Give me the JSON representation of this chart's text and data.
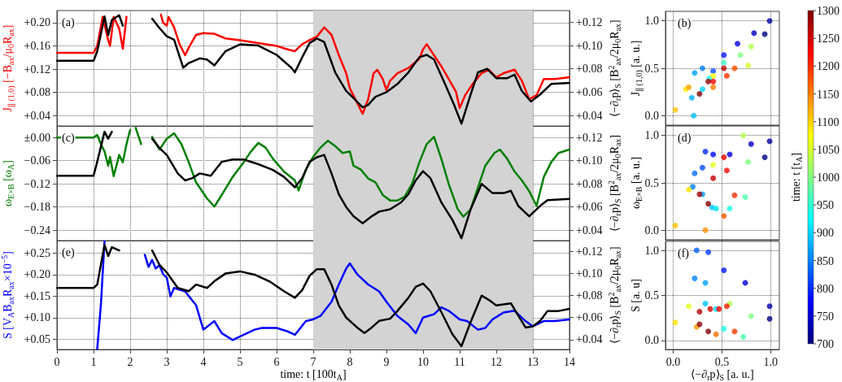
{
  "chart_data": [
    {
      "type": "line",
      "ylabel": "J$_{∥ (1,0)}$ [−B$_{ax}$/μ$_{0}$R$_{ax}$]",
      "y2label": "⟨−∂$_{r}$p⟩$_{S}$ [B$^{2}$$_{ax}$/2μ$_{0}$R$_{ax}$]",
      "annotations": [
        "(a)"
      ],
      "xlim": [
        0,
        14
      ],
      "xticks": [
        0,
        1,
        2,
        3,
        4,
        5,
        6,
        7,
        8,
        9,
        10,
        11,
        12,
        13,
        14
      ],
      "ylim": [
        0.022,
        0.221
      ],
      "yticks": [
        {
          "value": 0.04,
          "label": "+0.04"
        },
        {
          "value": 0.08,
          "label": "+0.08"
        },
        {
          "value": 0.12,
          "label": "+0.12"
        },
        {
          "value": 0.16,
          "label": "+0.16"
        },
        {
          "value": 0.2,
          "label": "+0.20"
        }
      ],
      "y2lim": [
        0.031,
        0.13
      ],
      "y2ticks": [
        {
          "value": 0.04,
          "label": "+0.04"
        },
        {
          "value": 0.06,
          "label": "+0.06"
        },
        {
          "value": 0.08,
          "label": "+0.08"
        },
        {
          "value": 0.1,
          "label": "+0.10"
        },
        {
          "value": 0.12,
          "label": "+0.12"
        }
      ],
      "tick_labels": "y",
      "grid": true,
      "line_style": "solid",
      "bands": [
        {
          "axis": "x",
          "from": 7,
          "to": 13,
          "color": "#d3d3d3"
        }
      ],
      "series": [
        {
          "color": "#ff0000",
          "x": [
            0,
            1.0,
            1.1,
            1.25,
            1.4,
            1.45,
            1.55,
            1.7,
            1.8,
            1.9,
            2.0,
            2.84,
            2.9,
            3.0,
            3.05,
            3.2,
            3.35,
            3.5,
            3.6,
            3.8,
            4.0,
            4.3,
            4.6,
            5.0,
            5.5,
            6.0,
            6.3,
            6.5,
            6.7,
            6.9,
            7.1,
            7.3,
            7.5,
            7.7,
            7.9,
            8.0,
            8.15,
            8.35,
            8.5,
            8.65,
            8.75,
            8.9,
            9.0,
            9.1,
            9.3,
            9.6,
            9.9,
            10.0,
            10.1,
            10.3,
            10.5,
            10.7,
            10.9,
            11.0,
            11.15,
            11.35,
            11.6,
            11.8,
            12.0,
            12.2,
            12.5,
            12.7,
            12.9,
            13.1,
            13.3,
            13.6,
            14.0
          ],
          "values": [
            0.148,
            0.148,
            0.16,
            0.21,
            0.17,
            0.16,
            0.21,
            0.19,
            0.155,
            0.21,
            null,
            0.214,
            0.2,
            0.195,
            0.21,
            0.192,
            0.163,
            0.144,
            0.157,
            0.179,
            0.182,
            0.181,
            0.173,
            0.17,
            0.165,
            0.16,
            0.154,
            0.151,
            0.163,
            0.17,
            0.176,
            0.192,
            0.179,
            0.144,
            0.113,
            0.087,
            0.068,
            0.043,
            0.068,
            0.113,
            0.119,
            0.103,
            0.084,
            0.1,
            0.113,
            0.122,
            0.138,
            0.154,
            0.163,
            0.144,
            0.125,
            0.103,
            0.081,
            0.053,
            0.075,
            0.094,
            0.113,
            0.119,
            0.106,
            0.113,
            0.119,
            0.1,
            0.068,
            0.075,
            0.103,
            0.103,
            0.106
          ]
        },
        {
          "color": "#000000",
          "axis": "y2",
          "x": [
            0,
            1.0,
            1.1,
            1.3,
            1.4,
            1.5,
            1.7,
            1.8,
            1.9,
            2.6,
            2.8,
            3.0,
            3.2,
            3.45,
            3.6,
            3.9,
            4.1,
            4.3,
            4.6,
            5.0,
            5.5,
            6.0,
            6.4,
            6.5,
            6.7,
            6.9,
            7.1,
            7.3,
            7.6,
            7.9,
            8.1,
            8.35,
            8.5,
            8.7,
            9.0,
            9.3,
            9.6,
            9.9,
            10.1,
            10.3,
            10.6,
            10.85,
            11.05,
            11.3,
            11.5,
            11.75,
            12.0,
            12.3,
            12.5,
            12.7,
            12.95,
            13.2,
            13.5,
            14.0
          ],
          "values": [
            0.087,
            0.087,
            0.095,
            0.125,
            0.109,
            0.122,
            0.126,
            0.117,
            null,
            0.123,
            0.115,
            0.108,
            0.105,
            0.081,
            0.085,
            0.089,
            0.088,
            0.083,
            0.095,
            0.101,
            0.1,
            0.092,
            0.081,
            0.077,
            0.09,
            0.102,
            0.106,
            0.103,
            0.077,
            0.061,
            0.055,
            0.047,
            0.049,
            0.056,
            0.06,
            0.067,
            0.077,
            0.09,
            0.092,
            0.088,
            0.067,
            0.049,
            0.033,
            0.058,
            0.077,
            0.08,
            0.072,
            0.072,
            0.075,
            0.061,
            0.052,
            0.058,
            0.067,
            0.068
          ]
        }
      ]
    },
    {
      "type": "scatter",
      "ylabel": "J$_{∥ (1,0)}$ [a. u.]",
      "annotations": [
        "(b)"
      ],
      "xlim": [
        -0.08,
        1.09
      ],
      "xticks": [
        0,
        0.5,
        1
      ],
      "ylim": [
        -0.1,
        1.1
      ],
      "yticks": [
        {
          "value": 0,
          "label": "0.0"
        },
        {
          "value": 0.5,
          "label": "0.5"
        },
        {
          "value": 1,
          "label": "1.0"
        }
      ],
      "tick_labels": "y",
      "grid": true,
      "marker": "circle",
      "clabel": "time: t [t$_{A}$]",
      "clim": [
        700,
        1300
      ],
      "cticks": [
        700,
        750,
        800,
        850,
        900,
        950,
        1000,
        1050,
        1100,
        1150,
        1200,
        1250,
        1300
      ],
      "x": [
        0.94,
        0.99,
        0.83,
        0.66,
        0.52,
        0.41,
        0.3,
        0.22,
        0.19,
        0.21,
        0.3,
        0.37,
        0.52,
        0.69,
        0.8,
        0.77,
        0.41,
        0.13,
        0.02,
        0.16,
        0.41,
        0.63,
        0.55,
        0.41,
        0.52,
        0.36,
        0.27
      ],
      "values": [
        0.86,
        1.0,
        0.87,
        0.76,
        0.64,
        0.47,
        0.5,
        0.45,
        0.19,
        0.0,
        0.28,
        0.39,
        0.56,
        0.64,
        0.73,
        0.53,
        0.42,
        0.28,
        0.06,
        0.3,
        0.3,
        0.5,
        0.42,
        0.36,
        0.5,
        0.36,
        0.23
      ],
      "cvalues": [
        700,
        720,
        740,
        760,
        790,
        820,
        850,
        870,
        880,
        890,
        900,
        930,
        960,
        1000,
        1030,
        1050,
        1070,
        1090,
        1110,
        1130,
        1150,
        1180,
        1200,
        1230,
        1260,
        1280,
        1300
      ]
    },
    {
      "type": "line",
      "ylabel": "ω$_{E×B}$ [ω$_{A}$]",
      "y2label": "⟨−∂$_{r}$p⟩$_{S}$ [B$^{2}$$_{ax}$/2μ$_{0}$R$_{ax}$]",
      "annotations": [
        "(c)"
      ],
      "xlim": [
        0,
        14
      ],
      "xticks": [
        0,
        1,
        2,
        3,
        4,
        5,
        6,
        7,
        8,
        9,
        10,
        11,
        12,
        13,
        14
      ],
      "ylim": [
        -0.267,
        0.03
      ],
      "yticks": [
        {
          "value": -0.24,
          "label": "−0.24"
        },
        {
          "value": -0.18,
          "label": "−0.18"
        },
        {
          "value": -0.12,
          "label": "−0.12"
        },
        {
          "value": -0.06,
          "label": "−0.06"
        },
        {
          "value": 0,
          "label": "±0.00"
        }
      ],
      "y2lim": [
        0.031,
        0.13
      ],
      "y2ticks": [
        {
          "value": 0.04,
          "label": "+0.04"
        },
        {
          "value": 0.06,
          "label": "+0.06"
        },
        {
          "value": 0.08,
          "label": "+0.08"
        },
        {
          "value": 0.1,
          "label": "+0.10"
        },
        {
          "value": 0.12,
          "label": "+0.12"
        }
      ],
      "tick_labels": "y",
      "grid": true,
      "line_style": "solid",
      "bands": [
        {
          "axis": "x",
          "from": 7,
          "to": 13,
          "color": "#d3d3d3"
        }
      ],
      "series": [
        {
          "color": "#008000",
          "x": [
            0,
            1.0,
            1.1,
            1.2,
            1.3,
            1.4,
            1.45,
            1.55,
            1.7,
            1.8,
            1.9,
            2.0,
            2.08,
            2.15,
            2.3,
            2.4,
            2.6,
            2.8,
            3.0,
            3.2,
            3.4,
            3.6,
            3.8,
            4.1,
            4.3,
            4.5,
            4.8,
            5.1,
            5.3,
            5.5,
            5.7,
            5.9,
            6.2,
            6.5,
            6.6,
            6.8,
            7.0,
            7.2,
            7.4,
            7.6,
            7.8,
            8.0,
            8.1,
            8.3,
            8.5,
            8.7,
            8.9,
            9.1,
            9.3,
            9.5,
            9.7,
            9.9,
            10.1,
            10.3,
            10.5,
            10.7,
            10.95,
            11.1,
            11.3,
            11.5,
            11.7,
            11.95,
            12.1,
            12.3,
            12.5,
            12.7,
            12.9,
            13.1,
            13.3,
            13.5,
            13.7,
            14.0
          ],
          "values": [
            0,
            0,
            0.007,
            -0.017,
            -0.036,
            -0.073,
            -0.05,
            -0.1,
            -0.045,
            -0.064,
            -0.017,
            0.02,
            null,
            0.025,
            -0.017,
            null,
            0.002,
            -0.031,
            -0.003,
            0.011,
            -0.017,
            -0.064,
            -0.116,
            -0.158,
            -0.179,
            -0.149,
            -0.102,
            -0.064,
            -0.036,
            -0.014,
            -0.026,
            -0.055,
            -0.088,
            -0.111,
            -0.137,
            -0.083,
            -0.05,
            -0.026,
            -0.008,
            -0.022,
            -0.04,
            -0.036,
            -0.073,
            -0.083,
            -0.106,
            -0.116,
            -0.149,
            -0.163,
            -0.163,
            -0.153,
            -0.12,
            -0.064,
            -0.017,
            0.002,
            -0.055,
            -0.12,
            -0.186,
            -0.205,
            -0.186,
            -0.13,
            -0.073,
            -0.04,
            -0.031,
            -0.055,
            -0.088,
            -0.111,
            -0.139,
            -0.177,
            -0.102,
            -0.064,
            -0.04,
            -0.031
          ]
        },
        {
          "color": "#000000",
          "axis": "y2",
          "x": [
            0,
            1.0,
            1.1,
            1.3,
            1.4,
            1.5,
            1.7,
            2.6,
            2.8,
            3.0,
            3.3,
            3.5,
            3.7,
            3.9,
            4.2,
            4.5,
            4.8,
            5.1,
            5.5,
            5.9,
            6.2,
            6.5,
            6.7,
            6.9,
            7.1,
            7.3,
            7.5,
            7.7,
            7.9,
            8.1,
            8.35,
            8.6,
            8.8,
            9.1,
            9.4,
            9.6,
            9.8,
            10.0,
            10.2,
            10.5,
            10.8,
            11.05,
            11.3,
            11.6,
            11.9,
            12.2,
            12.4,
            12.6,
            12.9,
            13.2,
            13.4,
            14.0
          ],
          "values": [
            0.087,
            0.087,
            0.099,
            0.125,
            0.119,
            0.125,
            null,
            0.119,
            0.111,
            0.105,
            0.089,
            0.083,
            0.085,
            0.089,
            0.087,
            0.099,
            0.101,
            0.101,
            0.097,
            0.092,
            0.086,
            0.077,
            0.085,
            0.099,
            0.103,
            0.105,
            0.089,
            0.071,
            0.06,
            0.052,
            0.046,
            0.052,
            0.056,
            0.058,
            0.064,
            0.071,
            0.083,
            0.091,
            0.085,
            0.064,
            0.049,
            0.033,
            0.058,
            0.08,
            0.072,
            0.072,
            0.074,
            0.061,
            0.052,
            0.061,
            0.066,
            0.067
          ]
        }
      ]
    },
    {
      "type": "scatter",
      "ylabel": "ω$_{E×B}$ [a. u.]",
      "annotations": [
        "(d)"
      ],
      "xlim": [
        -0.08,
        1.09
      ],
      "xticks": [
        0,
        0.5,
        1
      ],
      "ylim": [
        -0.1,
        1.1
      ],
      "yticks": [
        {
          "value": 0,
          "label": "0.0"
        },
        {
          "value": 0.5,
          "label": "0.5"
        },
        {
          "value": 1,
          "label": "1.0"
        }
      ],
      "tick_labels": "y",
      "grid": true,
      "marker": "circle",
      "x": [
        0.94,
        0.99,
        0.8,
        0.58,
        0.41,
        0.33,
        0.3,
        0.22,
        0.2,
        0.3,
        0.4,
        0.44,
        0.58,
        0.74,
        0.77,
        0.72,
        0.41,
        0.16,
        0.02,
        0.33,
        0.52,
        0.63,
        0.55,
        0.52,
        0.41,
        0.27,
        0.36
      ],
      "values": [
        0.77,
        0.94,
        0.91,
        0.8,
        0.8,
        0.83,
        0.66,
        0.6,
        0.46,
        0.38,
        0.24,
        0.23,
        0.23,
        0.35,
        0.72,
        1.0,
        0.69,
        0.43,
        0.05,
        0.0,
        0.15,
        0.37,
        0.63,
        0.77,
        0.55,
        0.38,
        0.28
      ],
      "colors": [
        "#00007f",
        "#0000a1",
        "#0000c3",
        "#0000e5",
        "#0008ff",
        "#002aff",
        "#004cff",
        "#006eff",
        "#007fff",
        "#00a1ff",
        "#00c3ff",
        "#00e5ff",
        "#19ffe5",
        "#4cffb2",
        "#7fff7f",
        "#b2ff4c",
        "#e5ff19",
        "#ffe500",
        "#ffc300",
        "#ff9000",
        "#ff5d00",
        "#ff2a00",
        "#ff0800",
        "#e50000",
        "#c30000",
        "#a10000",
        "#7f0000"
      ]
    },
    {
      "type": "line",
      "ylabel": "S [V$_{A}$B$_{ax}$R$_{ax}$×10$^{−5}$]",
      "y2label": "⟨−∂$_{r}$p⟩$_{S}$ [B$^{2}$$_{ax}$/2μ$_{0}$R$_{ax}$]",
      "xlabel": "time: t [100t$_{A}$]",
      "annotations": [
        "(e)"
      ],
      "xlim": [
        0,
        14
      ],
      "xticks": [
        0,
        1,
        2,
        3,
        4,
        5,
        6,
        7,
        8,
        9,
        10,
        11,
        12,
        13,
        14
      ],
      "ylim": [
        0.026,
        0.279
      ],
      "yticks": [
        {
          "value": 0.05,
          "label": "+0.05"
        },
        {
          "value": 0.1,
          "label": "+0.10"
        },
        {
          "value": 0.15,
          "label": "+0.15"
        },
        {
          "value": 0.2,
          "label": "+0.20"
        },
        {
          "value": 0.25,
          "label": "+0.25"
        }
      ],
      "y2lim": [
        0.031,
        0.13
      ],
      "y2ticks": [
        {
          "value": 0.04,
          "label": "+0.04"
        },
        {
          "value": 0.06,
          "label": "+0.06"
        },
        {
          "value": 0.08,
          "label": "+0.08"
        },
        {
          "value": 0.1,
          "label": "+0.10"
        },
        {
          "value": 0.12,
          "label": "+0.12"
        }
      ],
      "grid": true,
      "line_style": "solid",
      "bands": [
        {
          "axis": "x",
          "from": 7,
          "to": 13,
          "color": "#d3d3d3"
        }
      ],
      "series": [
        {
          "color": "#0000ff",
          "x": [
            1.1,
            1.2,
            1.3,
            1.35,
            2.4,
            2.5,
            2.6,
            2.7,
            2.8,
            2.9,
            3.0,
            3.1,
            3.2,
            3.5,
            3.8,
            4.0,
            4.3,
            4.5,
            4.8,
            5.1,
            5.4,
            5.6,
            6.0,
            6.3,
            6.5,
            6.8,
            7.0,
            7.2,
            7.5,
            7.7,
            7.9,
            8.0,
            8.2,
            8.5,
            8.8,
            9.0,
            9.3,
            9.6,
            9.8,
            10.0,
            10.3,
            10.5,
            10.7,
            11.0,
            11.2,
            11.5,
            11.7,
            11.9,
            12.2,
            12.5,
            12.8,
            13.0,
            13.3,
            13.6,
            14.0
          ],
          "values": [
            0.027,
            0.129,
            0.278,
            null,
            0.246,
            0.218,
            0.234,
            0.214,
            0.222,
            0.201,
            0.193,
            0.149,
            0.169,
            0.161,
            0.129,
            0.072,
            0.092,
            0.064,
            0.048,
            0.06,
            0.072,
            0.076,
            0.076,
            0.068,
            0.06,
            0.092,
            0.096,
            0.104,
            0.137,
            0.177,
            0.214,
            0.226,
            0.201,
            0.177,
            0.161,
            0.137,
            0.104,
            0.084,
            0.064,
            0.1,
            0.108,
            0.124,
            0.116,
            0.096,
            0.092,
            0.072,
            0.076,
            0.096,
            0.112,
            0.116,
            0.092,
            0.08,
            0.092,
            0.092,
            0.096
          ]
        },
        {
          "color": "#000000",
          "axis": "y2",
          "x": [
            0,
            1.0,
            1.1,
            1.3,
            1.4,
            1.5,
            1.7,
            1.8,
            2.6,
            2.8,
            3.0,
            3.3,
            3.6,
            3.8,
            4.1,
            4.3,
            4.6,
            5.0,
            5.4,
            5.8,
            6.2,
            6.5,
            6.7,
            6.9,
            7.1,
            7.3,
            7.5,
            7.7,
            7.9,
            8.2,
            8.4,
            8.6,
            8.8,
            9.1,
            9.3,
            9.6,
            9.8,
            10.0,
            10.2,
            10.5,
            10.8,
            11.05,
            11.3,
            11.6,
            11.8,
            12.0,
            12.4,
            12.6,
            12.8,
            13.0,
            13.2,
            13.4,
            13.7,
            14.0
          ],
          "values": [
            0.087,
            0.087,
            0.09,
            0.126,
            0.116,
            0.124,
            0.121,
            null,
            0.121,
            0.108,
            0.101,
            0.087,
            0.084,
            0.09,
            0.087,
            0.093,
            0.1,
            0.102,
            0.099,
            0.093,
            0.084,
            0.078,
            0.085,
            0.098,
            0.104,
            0.104,
            0.09,
            0.071,
            0.06,
            0.051,
            0.046,
            0.051,
            0.057,
            0.059,
            0.066,
            0.078,
            0.088,
            0.091,
            0.084,
            0.065,
            0.045,
            0.034,
            0.056,
            0.08,
            0.076,
            0.071,
            0.073,
            0.062,
            0.051,
            0.052,
            0.057,
            0.066,
            0.066,
            0.068
          ]
        }
      ]
    },
    {
      "type": "scatter",
      "ylabel": "S [a. u]",
      "xlabel": "⟨−∂$_{r}$p⟩$_{S}$ [a. u.]",
      "annotations": [
        "(f)"
      ],
      "xlim": [
        -0.08,
        1.09
      ],
      "xticks": [
        {
          "value": 0,
          "label": "0.0"
        },
        {
          "value": 0.5,
          "label": "0.5"
        },
        {
          "value": 1,
          "label": "1.0"
        }
      ],
      "ylim": [
        -0.1,
        1.1
      ],
      "yticks": [
        {
          "value": 0,
          "label": "0.0"
        },
        {
          "value": 0.5,
          "label": "0.5"
        },
        {
          "value": 1,
          "label": "1.0"
        }
      ],
      "grid": true,
      "marker": "circle",
      "x": [
        0.99,
        0.99,
        0.74,
        0.52,
        0.36,
        0.24,
        0.22,
        0.33,
        0.33,
        0.44,
        0.52,
        0.72,
        0.8,
        0.58,
        0.16,
        0.02,
        0.24,
        0.44,
        0.63,
        0.55,
        0.47,
        0.38,
        0.27,
        0.27,
        0.36
      ],
      "values": [
        0.24,
        0.38,
        0.64,
        0.78,
        0.98,
        1.0,
        0.69,
        0.64,
        0.41,
        0.35,
        0.13,
        0.04,
        0.27,
        0.41,
        0.38,
        0.2,
        0.15,
        0.07,
        0.1,
        0.38,
        0.35,
        0.35,
        0.32,
        0.18,
        0.1
      ],
      "colors": [
        "#00007f",
        "#0000b2",
        "#0000e5",
        "#0019ff",
        "#003bff",
        "#005dff",
        "#007fff",
        "#00a1ff",
        "#00c3ff",
        "#00e5ff",
        "#19ffe5",
        "#4cffb2",
        "#7fff7f",
        "#b2ff4c",
        "#e5ff19",
        "#ffe500",
        "#ffa100",
        "#ff6e00",
        "#ff3b00",
        "#ff1900",
        "#f60000",
        "#d40000",
        "#b20000",
        "#900000",
        "#7f0000"
      ]
    }
  ]
}
